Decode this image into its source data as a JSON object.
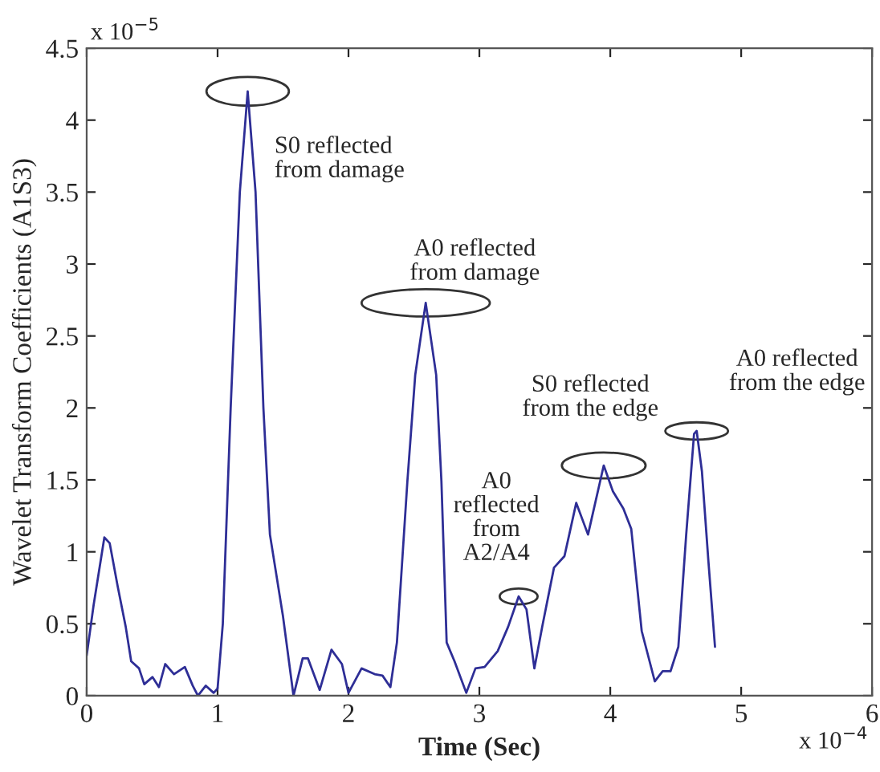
{
  "chart_data": {
    "type": "line",
    "xlabel": "Time (Sec)",
    "ylabel": "Wavelet Transform Coefficients (A1S3)",
    "x": [
      0.0,
      0.053,
      0.135,
      0.176,
      0.237,
      0.298,
      0.34,
      0.4,
      0.44,
      0.503,
      0.552,
      0.6,
      0.667,
      0.75,
      0.81,
      0.85,
      0.91,
      0.97,
      1.0,
      1.04,
      1.1,
      1.17,
      1.23,
      1.29,
      1.35,
      1.4,
      1.5,
      1.58,
      1.65,
      1.69,
      1.78,
      1.87,
      1.95,
      2.0,
      2.1,
      2.2,
      2.26,
      2.32,
      2.37,
      2.45,
      2.51,
      2.59,
      2.67,
      2.71,
      2.75,
      2.81,
      2.9,
      2.97,
      3.04,
      3.14,
      3.22,
      3.3,
      3.36,
      3.42,
      3.48,
      3.57,
      3.65,
      3.74,
      3.83,
      3.95,
      4.02,
      4.1,
      4.16,
      4.24,
      4.34,
      4.4,
      4.46,
      4.52,
      4.58,
      4.64,
      4.66,
      4.7,
      4.75,
      4.8
    ],
    "series": [
      {
        "color": "#2e2e96",
        "values": [
          0.28,
          0.63,
          1.1,
          1.06,
          0.76,
          0.48,
          0.24,
          0.19,
          0.08,
          0.13,
          0.06,
          0.22,
          0.15,
          0.2,
          0.07,
          0.0,
          0.07,
          0.02,
          0.05,
          0.5,
          2.0,
          3.5,
          4.2,
          3.5,
          2.0,
          1.12,
          0.55,
          0.0,
          0.26,
          0.26,
          0.04,
          0.32,
          0.22,
          0.02,
          0.19,
          0.15,
          0.14,
          0.06,
          0.37,
          1.49,
          2.23,
          2.73,
          2.23,
          1.49,
          0.37,
          0.24,
          0.02,
          0.19,
          0.2,
          0.31,
          0.48,
          0.69,
          0.6,
          0.19,
          0.48,
          0.89,
          0.97,
          1.34,
          1.12,
          1.6,
          1.42,
          1.3,
          1.16,
          0.45,
          0.1,
          0.17,
          0.17,
          0.34,
          1.12,
          1.82,
          1.84,
          1.56,
          0.93,
          0.34
        ]
      }
    ],
    "xlim": [
      0,
      6
    ],
    "xticks": [
      0,
      1,
      2,
      3,
      4,
      5,
      6
    ],
    "ylim": [
      0,
      4.5
    ],
    "yticks": [
      0,
      0.5,
      1,
      1.5,
      2,
      2.5,
      3,
      3.5,
      4,
      4.5
    ],
    "grid": false,
    "legend": false,
    "marker": "none",
    "line_style": "solid",
    "annotations": [
      {
        "text": "S0 reflected\nfrom damage",
        "x": 1.23,
        "y": 4.2
      },
      {
        "text": "A0 reflected\nfrom damage",
        "x": 2.59,
        "y": 2.73
      },
      {
        "text": "A0\nreflected\nfrom\nA2/A4",
        "x": 3.3,
        "y": 0.69
      },
      {
        "text": "S0 reflected\nfrom the edge",
        "x": 3.95,
        "y": 1.6
      },
      {
        "text": "A0 reflected\nfrom the edge",
        "x": 4.66,
        "y": 1.84
      },
      "x 10$^{−5}$",
      "x 10$^{−4}$"
    ]
  }
}
